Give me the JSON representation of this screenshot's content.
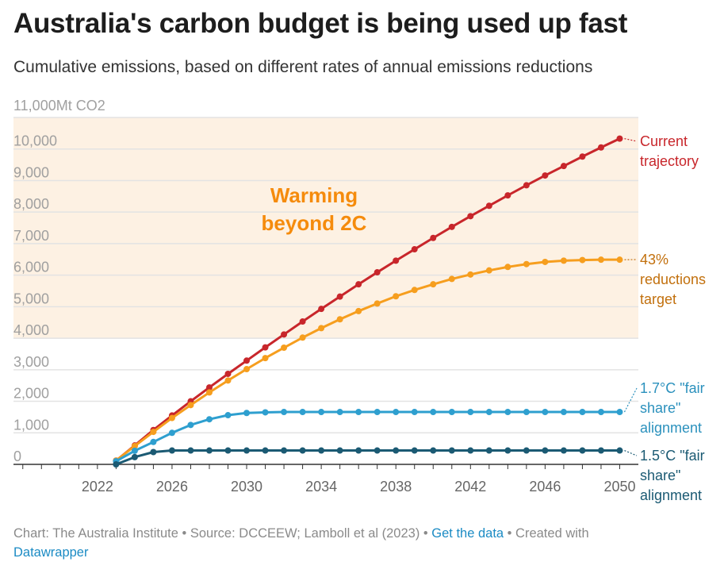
{
  "title": "Australia's carbon budget is being used up fast",
  "subtitle": "Cumulative emissions, based on different rates of annual emissions reductions",
  "chart_data": {
    "type": "line",
    "y_unit_label": "11,000Mt CO2",
    "ylim": [
      0,
      11000
    ],
    "y_ticks": [
      0,
      1000,
      2000,
      3000,
      4000,
      5000,
      6000,
      7000,
      8000,
      9000,
      10000
    ],
    "y_tick_labels": [
      "0",
      "1,000",
      "2,000",
      "3,000",
      "4,000",
      "5,000",
      "6,000",
      "7,000",
      "8,000",
      "9,000",
      "10,000"
    ],
    "xlim": [
      2017.5,
      2051
    ],
    "x_ticks": [
      2022,
      2026,
      2030,
      2034,
      2038,
      2042,
      2046,
      2050
    ],
    "x_tick_labels": [
      "2022",
      "2026",
      "2030",
      "2034",
      "2038",
      "2042",
      "2046",
      "2050"
    ],
    "x": [
      2023,
      2024,
      2025,
      2026,
      2027,
      2028,
      2029,
      2030,
      2031,
      2032,
      2033,
      2034,
      2035,
      2036,
      2037,
      2038,
      2039,
      2040,
      2041,
      2042,
      2043,
      2044,
      2045,
      2046,
      2047,
      2048,
      2049,
      2050
    ],
    "shaded_region": {
      "y_from": 4000,
      "y_to": 11000,
      "label": "Warming beyond 2C",
      "color": "#fdf1e3"
    },
    "series": [
      {
        "name": "Current trajectory",
        "color": "#c8262b",
        "label_color": "#c8262b",
        "values": [
          120,
          600,
          1090,
          1550,
          2000,
          2440,
          2870,
          3290,
          3710,
          4120,
          4530,
          4930,
          5320,
          5710,
          6090,
          6460,
          6820,
          7180,
          7530,
          7870,
          8200,
          8530,
          8850,
          9160,
          9460,
          9760,
          10050,
          10330
        ]
      },
      {
        "name": "43% reductions target",
        "color": "#f69e1e",
        "label_color": "#c2700d",
        "values": [
          120,
          580,
          1030,
          1470,
          1880,
          2280,
          2660,
          3020,
          3370,
          3700,
          4020,
          4320,
          4600,
          4860,
          5100,
          5330,
          5530,
          5710,
          5880,
          6020,
          6150,
          6260,
          6350,
          6420,
          6460,
          6480,
          6490,
          6490
        ]
      },
      {
        "name": "1.7°C \"fair share\" alignment",
        "color": "#2e9fcf",
        "label_color": "#2b91bd",
        "values": [
          100,
          430,
          710,
          1000,
          1250,
          1430,
          1560,
          1630,
          1650,
          1660,
          1660,
          1660,
          1660,
          1660,
          1660,
          1660,
          1660,
          1660,
          1660,
          1660,
          1660,
          1660,
          1660,
          1660,
          1660,
          1660,
          1660,
          1660
        ]
      },
      {
        "name": "1.5°C \"fair share\" alignment",
        "color": "#1b5a73",
        "label_color": "#1b5a73",
        "values": [
          0,
          230,
          390,
          440,
          440,
          440,
          440,
          440,
          440,
          440,
          440,
          440,
          440,
          440,
          440,
          440,
          440,
          440,
          440,
          440,
          440,
          440,
          440,
          440,
          440,
          440,
          440,
          440
        ]
      }
    ],
    "end_labels": [
      [
        "Current",
        "trajectory"
      ],
      [
        "43%",
        "reductions",
        "target"
      ],
      [
        "1.7°C \"fair",
        "share\"",
        "alignment"
      ],
      [
        "1.5°C \"fair",
        "share\"",
        "alignment"
      ]
    ],
    "annotation": [
      "Warming",
      "beyond 2C"
    ],
    "annotation_color": "#f58b0c"
  },
  "footer": {
    "prefix": "Chart: The Australia Institute • Source: DCCEEW; Lamboll et al (2023) • ",
    "get_data": "Get the data",
    "middle": " • Created with ",
    "datawrapper": "Datawrapper"
  }
}
